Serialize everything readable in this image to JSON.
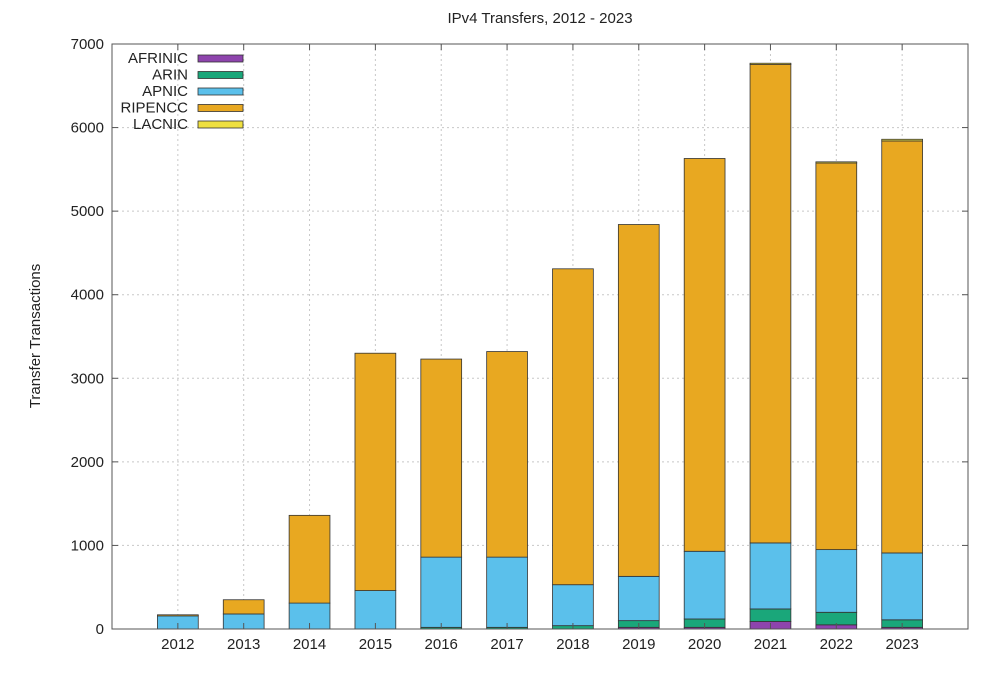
{
  "chart_data": {
    "type": "bar",
    "stacked": true,
    "title": "IPv4 Transfers, 2012 - 2023",
    "xlabel": "",
    "ylabel": "Transfer Transactions",
    "ylim": [
      0,
      7000
    ],
    "yticks": [
      0,
      1000,
      2000,
      3000,
      4000,
      5000,
      6000,
      7000
    ],
    "grid": true,
    "legend_position": "top-left",
    "categories": [
      "2012",
      "2013",
      "2014",
      "2015",
      "2016",
      "2017",
      "2018",
      "2019",
      "2020",
      "2021",
      "2022",
      "2023"
    ],
    "series": [
      {
        "name": "AFRINIC",
        "color": "#8e44ad",
        "values": [
          0,
          0,
          0,
          0,
          0,
          0,
          0,
          20,
          20,
          90,
          50,
          20
        ]
      },
      {
        "name": "ARIN",
        "color": "#1aa77a",
        "values": [
          0,
          0,
          0,
          0,
          20,
          20,
          40,
          80,
          100,
          150,
          150,
          90
        ]
      },
      {
        "name": "APNIC",
        "color": "#5bc0eb",
        "values": [
          160,
          180,
          310,
          460,
          840,
          840,
          490,
          530,
          810,
          790,
          750,
          800
        ]
      },
      {
        "name": "RIPENCC",
        "color": "#e8a821",
        "values": [
          10,
          170,
          1050,
          2840,
          2370,
          2460,
          3780,
          4210,
          4700,
          5730,
          4630,
          4930
        ]
      },
      {
        "name": "LACNIC",
        "color": "#efe040",
        "values": [
          0,
          0,
          0,
          0,
          0,
          0,
          0,
          0,
          0,
          10,
          10,
          20
        ]
      }
    ]
  }
}
